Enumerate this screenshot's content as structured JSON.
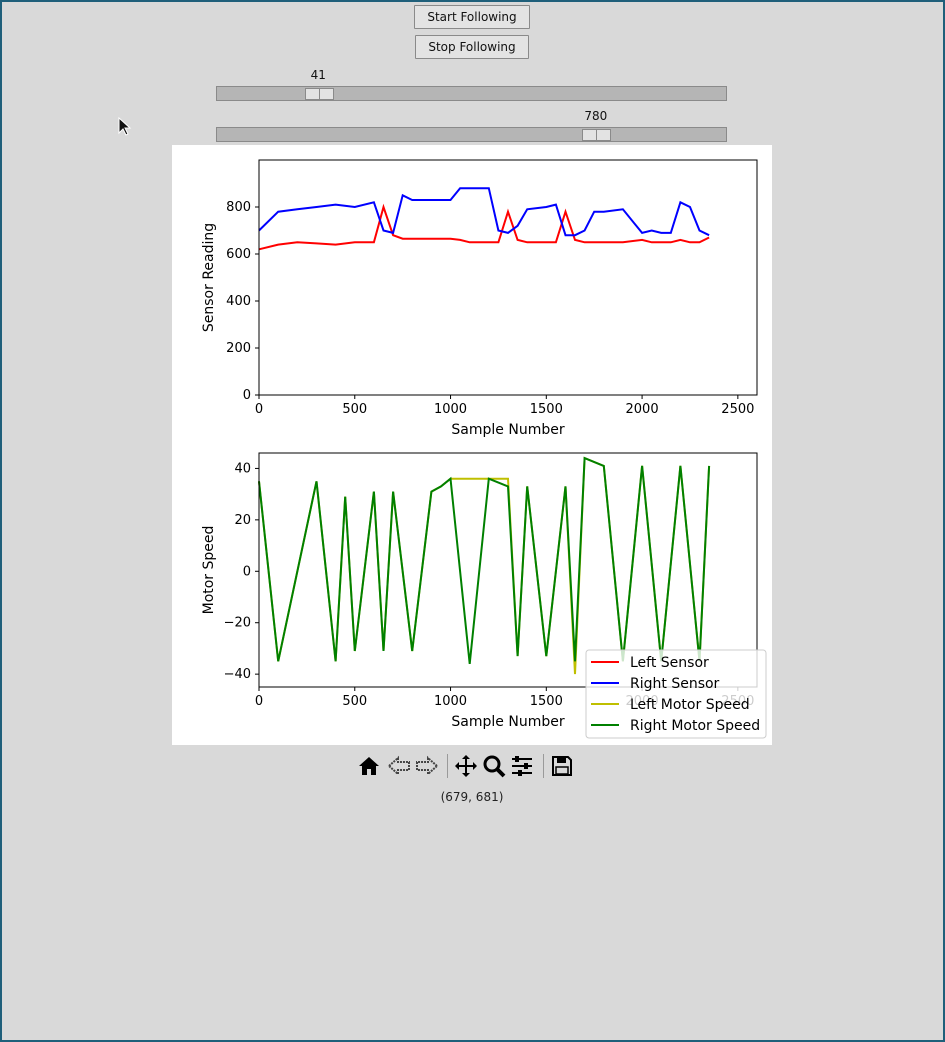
{
  "controls": {
    "start_label": "Start Following",
    "stop_label": "Stop Following",
    "slider1": {
      "value": "41",
      "fraction": 0.182
    },
    "slider2": {
      "value": "780",
      "fraction": 0.758
    }
  },
  "status": {
    "coords": "(679, 681)"
  },
  "toolbar": {
    "items": [
      "home-icon",
      "back-icon",
      "forward-icon",
      "pan-icon",
      "zoom-icon",
      "configure-subplots-icon",
      "save-icon"
    ]
  },
  "colors": {
    "left_sensor": "#ff0000",
    "right_sensor": "#0000ff",
    "left_motor": "#bfbf00",
    "right_motor": "#008000",
    "background": "#d9d9d9"
  },
  "chart_data": [
    {
      "type": "line",
      "xlabel": "Sample Number",
      "ylabel": "Sensor Reading",
      "xlim": [
        0,
        2600
      ],
      "ylim": [
        0,
        1000
      ],
      "xticks": [
        0,
        500,
        1000,
        1500,
        2000,
        2500
      ],
      "yticks": [
        0,
        200,
        400,
        600,
        800
      ],
      "series": [
        {
          "name": "Left Sensor",
          "x": [
            0,
            100,
            200,
            300,
            400,
            500,
            600,
            650,
            700,
            750,
            800,
            900,
            1000,
            1050,
            1100,
            1200,
            1250,
            1300,
            1350,
            1400,
            1500,
            1550,
            1600,
            1650,
            1700,
            1750,
            1800,
            1900,
            2000,
            2050,
            2100,
            2150,
            2200,
            2250,
            2300,
            2350
          ],
          "values": [
            620,
            640,
            650,
            645,
            640,
            650,
            650,
            800,
            680,
            665,
            665,
            665,
            665,
            660,
            650,
            650,
            650,
            780,
            660,
            650,
            650,
            650,
            780,
            660,
            650,
            650,
            650,
            650,
            660,
            650,
            650,
            650,
            660,
            650,
            650,
            670
          ]
        },
        {
          "name": "Right Sensor",
          "x": [
            0,
            100,
            200,
            300,
            400,
            500,
            600,
            650,
            700,
            750,
            800,
            900,
            1000,
            1050,
            1100,
            1200,
            1250,
            1300,
            1350,
            1400,
            1500,
            1550,
            1600,
            1650,
            1700,
            1750,
            1800,
            1900,
            2000,
            2050,
            2100,
            2150,
            2200,
            2250,
            2300,
            2350
          ],
          "values": [
            700,
            780,
            790,
            800,
            810,
            800,
            820,
            700,
            690,
            850,
            830,
            830,
            830,
            880,
            880,
            880,
            700,
            690,
            720,
            790,
            800,
            810,
            680,
            680,
            700,
            780,
            780,
            790,
            690,
            700,
            690,
            690,
            820,
            800,
            700,
            680
          ]
        }
      ]
    },
    {
      "type": "line",
      "xlabel": "Sample Number",
      "ylabel": "Motor Speed",
      "xlim": [
        0,
        2600
      ],
      "ylim": [
        -45,
        46
      ],
      "xticks": [
        0,
        500,
        1000,
        1500,
        2000,
        2500
      ],
      "yticks": [
        -40,
        -20,
        0,
        20,
        40
      ],
      "legend": {
        "placement": "lower-right",
        "entries": [
          "Left Sensor",
          "Right Sensor",
          "Left Motor Speed",
          "Right Motor Speed"
        ]
      },
      "series": [
        {
          "name": "Left Motor Speed",
          "x": [
            0,
            100,
            300,
            400,
            450,
            500,
            600,
            650,
            700,
            800,
            900,
            950,
            1000,
            1100,
            1200,
            1300,
            1350,
            1400,
            1500,
            1600,
            1650,
            1700,
            1800,
            1900,
            2000,
            2100,
            2200,
            2300,
            2350
          ],
          "values": [
            35,
            -35,
            35,
            -35,
            29,
            -31,
            31,
            -31,
            31,
            -31,
            31,
            33,
            36,
            36,
            36,
            36,
            -33,
            33,
            -33,
            33,
            -40,
            44,
            41,
            -35,
            41,
            -35,
            41,
            -35,
            41
          ]
        },
        {
          "name": "Right Motor Speed",
          "x": [
            0,
            100,
            300,
            400,
            450,
            500,
            600,
            650,
            700,
            800,
            900,
            950,
            1000,
            1100,
            1200,
            1300,
            1350,
            1400,
            1500,
            1600,
            1650,
            1700,
            1800,
            1900,
            2000,
            2100,
            2200,
            2300,
            2350
          ],
          "values": [
            35,
            -35,
            35,
            -35,
            29,
            -31,
            31,
            -31,
            31,
            -31,
            31,
            33,
            36,
            -36,
            36,
            33,
            -33,
            33,
            -33,
            33,
            -35,
            44,
            41,
            -35,
            41,
            -35,
            41,
            -35,
            41
          ]
        }
      ]
    }
  ]
}
